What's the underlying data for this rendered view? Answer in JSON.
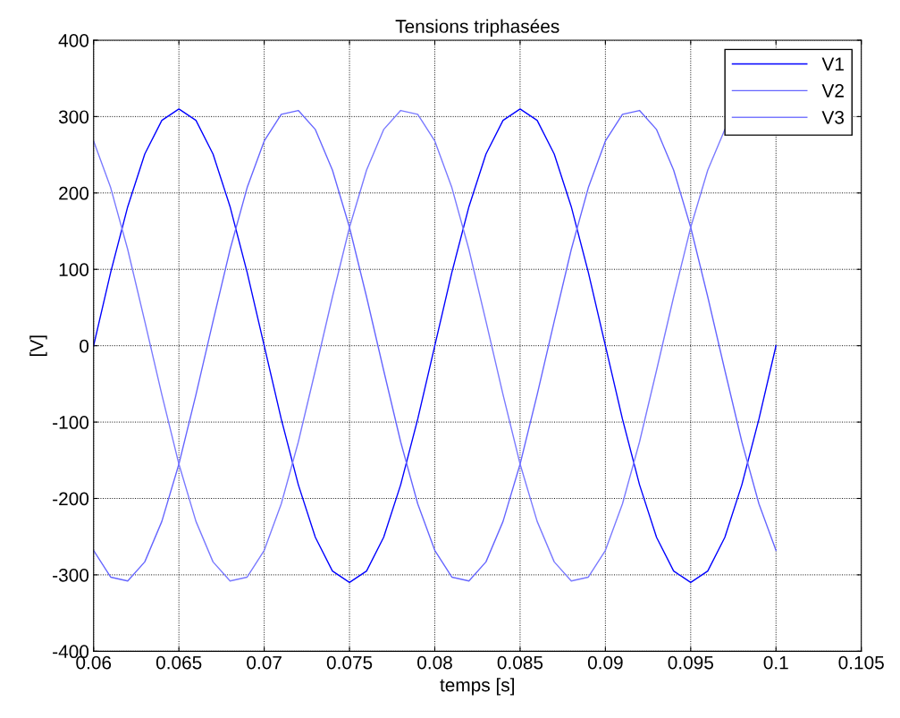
{
  "chart_data": {
    "type": "line",
    "title": "Tensions triphasées",
    "xlabel": "temps [s]",
    "ylabel": "[V]",
    "x": [
      0.06,
      0.061,
      0.062,
      0.063,
      0.064,
      0.065,
      0.066,
      0.067,
      0.068,
      0.069,
      0.07,
      0.071,
      0.072,
      0.073,
      0.074,
      0.075,
      0.076,
      0.077,
      0.078,
      0.079,
      0.08,
      0.081,
      0.082,
      0.083,
      0.084,
      0.085,
      0.086,
      0.087,
      0.088,
      0.089,
      0.09,
      0.091,
      0.092,
      0.093,
      0.094,
      0.095,
      0.096,
      0.097,
      0.098,
      0.099,
      0.1
    ],
    "series": [
      {
        "name": "V1",
        "color": "#0000ff",
        "values": [
          0,
          96,
          182,
          251,
          295,
          310,
          295,
          251,
          182,
          96,
          0,
          -96,
          -182,
          -251,
          -295,
          -310,
          -295,
          -251,
          -182,
          -96,
          0,
          96,
          182,
          251,
          295,
          310,
          295,
          251,
          182,
          96,
          0,
          -96,
          -182,
          -251,
          -295,
          -310,
          -295,
          -251,
          -182,
          -96,
          0
        ]
      },
      {
        "name": "V2",
        "color": "#6666ff",
        "values": [
          -268,
          -303,
          -308,
          -283,
          -230,
          -155,
          -64,
          32,
          126,
          207,
          268,
          303,
          308,
          283,
          230,
          155,
          64,
          -32,
          -126,
          -207,
          -268,
          -303,
          -308,
          -283,
          -230,
          -155,
          -64,
          32,
          126,
          207,
          268,
          303,
          308,
          283,
          230,
          155,
          64,
          -32,
          -126,
          -207,
          -268
        ]
      },
      {
        "name": "V3",
        "color": "#7a7aff",
        "values": [
          268,
          207,
          126,
          32,
          -64,
          -155,
          -230,
          -283,
          -308,
          -303,
          -268,
          -207,
          -126,
          -32,
          64,
          155,
          230,
          283,
          308,
          303,
          268,
          207,
          126,
          32,
          -64,
          -155,
          -230,
          -283,
          -308,
          -303,
          -268,
          -207,
          -126,
          -32,
          64,
          155,
          230,
          283,
          null,
          null,
          null
        ]
      }
    ],
    "xlim": [
      0.06,
      0.105
    ],
    "xticks": [
      0.06,
      0.065,
      0.07,
      0.075,
      0.08,
      0.085,
      0.09,
      0.095,
      0.1,
      0.105
    ],
    "ylim": [
      -400,
      400
    ],
    "yticks": [
      -400,
      -300,
      -200,
      -100,
      0,
      100,
      200,
      300,
      400
    ],
    "grid": true,
    "legend": "top right",
    "line_style": "solid",
    "marker": "none"
  }
}
